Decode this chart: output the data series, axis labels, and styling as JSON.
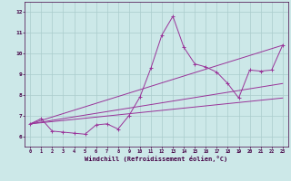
{
  "bg_color": "#cce8e8",
  "line_color": "#993399",
  "grid_color": "#aacccc",
  "xlabel": "Windchill (Refroidissement éolien,°C)",
  "ylim": [
    5.5,
    12.5
  ],
  "xlim": [
    -0.5,
    23.5
  ],
  "yticks": [
    6,
    7,
    8,
    9,
    10,
    11,
    12
  ],
  "xticks": [
    0,
    1,
    2,
    3,
    4,
    5,
    6,
    7,
    8,
    9,
    10,
    11,
    12,
    13,
    14,
    15,
    16,
    17,
    18,
    19,
    20,
    21,
    22,
    23
  ],
  "series": [
    {
      "x": [
        0,
        1,
        2,
        3,
        4,
        5,
        6,
        7,
        8,
        9,
        10,
        11,
        12,
        13,
        14,
        15,
        16,
        17,
        18,
        19,
        20,
        21,
        22,
        23
      ],
      "y": [
        6.6,
        6.85,
        6.25,
        6.2,
        6.15,
        6.1,
        6.55,
        6.6,
        6.35,
        7.0,
        7.9,
        9.3,
        10.9,
        11.8,
        10.3,
        9.5,
        9.35,
        9.1,
        8.55,
        7.85,
        9.2,
        9.15,
        9.2,
        10.4
      ]
    },
    {
      "x": [
        0,
        23
      ],
      "y": [
        6.6,
        10.4
      ]
    },
    {
      "x": [
        0,
        23
      ],
      "y": [
        6.6,
        8.55
      ]
    },
    {
      "x": [
        0,
        23
      ],
      "y": [
        6.6,
        7.85
      ]
    }
  ]
}
